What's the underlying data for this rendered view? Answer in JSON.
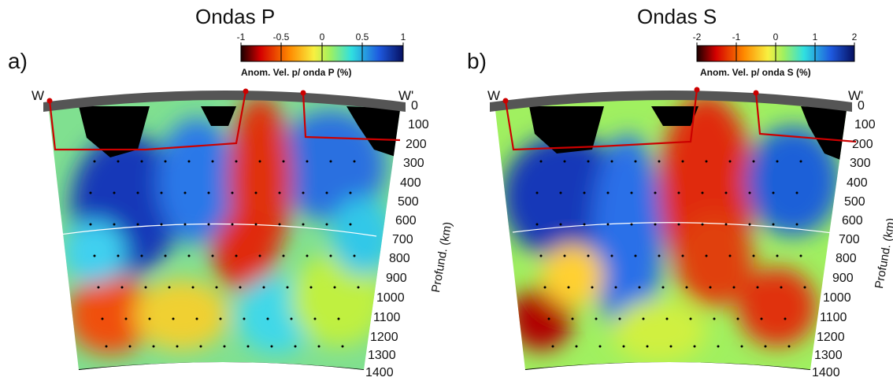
{
  "panels": [
    {
      "tag": "a)",
      "title": "Ondas P",
      "colorbar": {
        "ticks": [
          "-1",
          "-0.5",
          "0",
          "0.5",
          "1"
        ],
        "label": "Anom. Vel. p/ onda P (%)"
      },
      "left_label": "W",
      "right_label": "W'",
      "depth_ticks": [
        "0",
        "100",
        "200",
        "300",
        "400",
        "500",
        "600",
        "700",
        "800",
        "900",
        "1000",
        "1100",
        "1200",
        "1300",
        "1400"
      ],
      "axis_label": "Profund. (km)"
    },
    {
      "tag": "b)",
      "title": "Ondas S",
      "colorbar": {
        "ticks": [
          "-2",
          "-1",
          "0",
          "1",
          "2"
        ],
        "label": "Anom. Vel. p/ onda S (%)"
      },
      "left_label": "W",
      "right_label": "W'",
      "depth_ticks": [
        "0",
        "100",
        "200",
        "300",
        "400",
        "500",
        "600",
        "700",
        "800",
        "900",
        "1000",
        "1100",
        "1200",
        "1300",
        "1400"
      ],
      "axis_label": "Profund. (km)"
    }
  ],
  "colors": {
    "slow": "#d40000",
    "neutral": "#ffff40",
    "mid": "#40e0e0",
    "fast": "#0a1aa0",
    "profile_line": "#cc0000"
  }
}
